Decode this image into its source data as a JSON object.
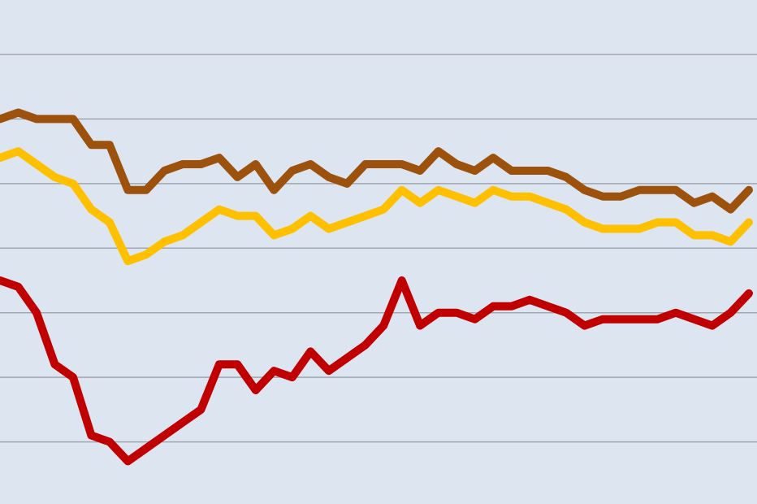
{
  "chart_data": {
    "type": "line",
    "title": "",
    "xlabel": "",
    "ylabel": "",
    "grid": true,
    "x": [
      0,
      1,
      2,
      3,
      4,
      5,
      6,
      7,
      8,
      9,
      10,
      11,
      12,
      13,
      14,
      15,
      16,
      17,
      18,
      19,
      20,
      21,
      22,
      23,
      24,
      25,
      26,
      27,
      28,
      29,
      30,
      31,
      32,
      33,
      34,
      35,
      36,
      37,
      38,
      39,
      40,
      41
    ],
    "ylim": [
      0,
      7.6
    ],
    "gridlines": [
      0,
      1,
      2,
      3,
      4,
      5,
      6,
      7
    ],
    "series": [
      {
        "color": "#9c520d",
        "values": [
          6.0,
          6.1,
          6.0,
          6.0,
          6.0,
          5.6,
          5.6,
          4.9,
          4.9,
          5.2,
          5.3,
          5.3,
          5.4,
          5.1,
          5.3,
          4.9,
          5.2,
          5.3,
          5.1,
          5.0,
          5.3,
          5.3,
          5.3,
          5.2,
          5.5,
          5.3,
          5.2,
          5.4,
          5.2,
          5.2,
          5.2,
          5.1,
          4.9,
          4.8,
          4.8,
          4.9,
          4.9,
          4.9,
          4.7,
          4.8,
          4.6,
          4.9
        ]
      },
      {
        "color": "#ffc000",
        "values": [
          5.4,
          5.5,
          5.3,
          5.1,
          5.0,
          4.6,
          4.4,
          3.8,
          3.9,
          4.1,
          4.2,
          4.4,
          4.6,
          4.5,
          4.5,
          4.2,
          4.3,
          4.5,
          4.3,
          4.4,
          4.5,
          4.6,
          4.9,
          4.7,
          4.9,
          4.8,
          4.7,
          4.9,
          4.8,
          4.8,
          4.7,
          4.6,
          4.4,
          4.3,
          4.3,
          4.3,
          4.4,
          4.4,
          4.2,
          4.2,
          4.1,
          4.4
        ]
      },
      {
        "color": "#c00000",
        "values": [
          3.5,
          3.4,
          3.0,
          2.2,
          2.0,
          1.1,
          1.0,
          0.7,
          0.9,
          1.1,
          1.3,
          1.5,
          2.2,
          2.2,
          1.8,
          2.1,
          2.0,
          2.4,
          2.1,
          2.3,
          2.5,
          2.8,
          3.5,
          2.8,
          3.0,
          3.0,
          2.9,
          3.1,
          3.1,
          3.2,
          3.1,
          3.0,
          2.8,
          2.9,
          2.9,
          2.9,
          2.9,
          3.0,
          2.9,
          2.8,
          3.0,
          3.3
        ]
      }
    ]
  }
}
